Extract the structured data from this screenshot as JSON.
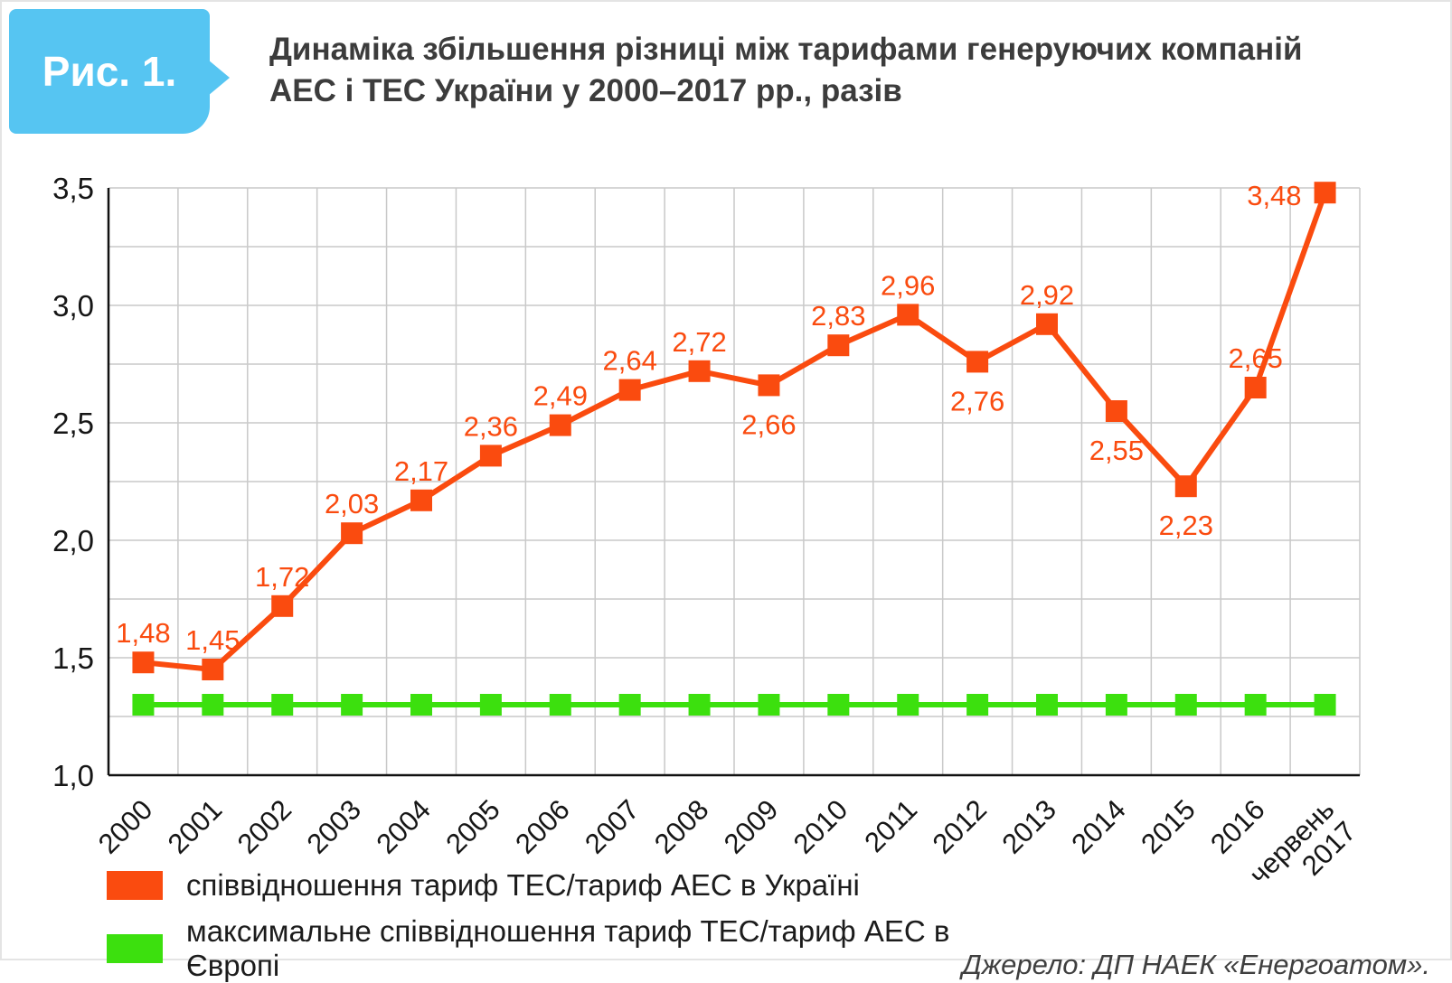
{
  "header": {
    "badge": "Рис. 1.",
    "title_line1": "Динаміка збільшення різниці між тарифами генеруючих компаній",
    "title_line2": "АЕС і ТЕС України у 2000–2017 рр., разів"
  },
  "chart_data": {
    "type": "line",
    "categories": [
      "2000",
      "2001",
      "2002",
      "2003",
      "2004",
      "2005",
      "2006",
      "2007",
      "2008",
      "2009",
      "2010",
      "2011",
      "2012",
      "2013",
      "2014",
      "2015",
      "2016",
      "червень\n2017"
    ],
    "series": [
      {
        "name": "співвідношення тариф ТЕС/тариф АЕС в Україні",
        "color": "#fa4b0f",
        "values": [
          1.48,
          1.45,
          1.72,
          2.03,
          2.17,
          2.36,
          2.49,
          2.64,
          2.72,
          2.66,
          2.83,
          2.96,
          2.76,
          2.92,
          2.55,
          2.23,
          2.65,
          3.48
        ],
        "labels": [
          "1,48",
          "1,45",
          "1,72",
          "2,03",
          "2,17",
          "2,36",
          "2,49",
          "2,64",
          "2,72",
          "2,66",
          "2,83",
          "2,96",
          "2,76",
          "2,92",
          "2,55",
          "2,23",
          "2,65",
          "3,48"
        ],
        "label_pos": [
          "above",
          "above",
          "above",
          "above",
          "above",
          "above",
          "above",
          "above",
          "above",
          "below",
          "above",
          "above",
          "below",
          "above",
          "below",
          "below",
          "above",
          "left"
        ]
      },
      {
        "name": "максимальне співвідношення тариф ТЕС/тариф АЕС в Європі",
        "color": "#3ce00e",
        "values": [
          1.3,
          1.3,
          1.3,
          1.3,
          1.3,
          1.3,
          1.3,
          1.3,
          1.3,
          1.3,
          1.3,
          1.3,
          1.3,
          1.3,
          1.3,
          1.3,
          1.3,
          1.3
        ]
      }
    ],
    "ylim": [
      1.0,
      3.5
    ],
    "yticks": [
      {
        "v": 1.0,
        "label": "1,0"
      },
      {
        "v": 1.5,
        "label": "1,5"
      },
      {
        "v": 2.0,
        "label": "2,0"
      },
      {
        "v": 2.5,
        "label": "2,5"
      },
      {
        "v": 3.0,
        "label": "3,0"
      },
      {
        "v": 3.5,
        "label": "3,5"
      }
    ],
    "grid": {
      "y_step": 0.25,
      "vertical_per_category": true,
      "color": "#c9c9c9"
    },
    "legend_position": "bottom-left"
  },
  "source": "Джерело: ДП НАЕК «Енергоатом»."
}
